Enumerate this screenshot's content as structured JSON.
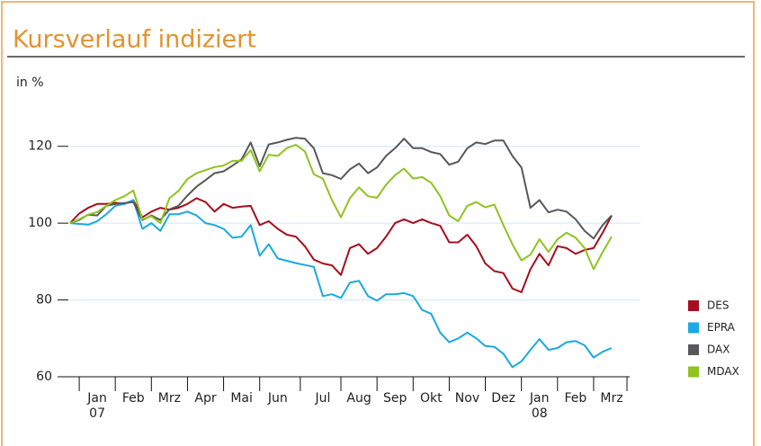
{
  "chart_data": {
    "type": "line",
    "title": "Kursverlauf indiziert",
    "y_label": "in %",
    "categories": [
      null,
      null,
      null,
      "Jan 07",
      null,
      null,
      null,
      "Feb",
      null,
      null,
      null,
      "Mrz",
      null,
      null,
      null,
      "Apr",
      null,
      null,
      null,
      "Mai",
      null,
      null,
      null,
      "Jun",
      null,
      null,
      null,
      null,
      "Jul",
      null,
      null,
      null,
      "Aug",
      null,
      null,
      null,
      "Sep",
      null,
      null,
      null,
      "Okt",
      null,
      null,
      null,
      "Nov",
      null,
      null,
      null,
      "Dez",
      null,
      null,
      null,
      "Jan 08",
      null,
      null,
      null,
      "Feb",
      null,
      null,
      null,
      "Mrz"
    ],
    "series": [
      {
        "name": "DES",
        "color": "#a50e1e",
        "values": [
          100,
          102.5,
          104,
          105,
          105,
          105.3,
          105,
          106,
          101.5,
          103,
          104,
          103.5,
          104,
          105,
          106.5,
          105.5,
          103,
          105,
          104,
          104.3,
          104.5,
          99.5,
          100.5,
          98.5,
          97,
          96.5,
          94,
          90.5,
          89.5,
          89,
          86.5,
          93.5,
          94.5,
          92,
          93.5,
          96.5,
          100,
          101,
          100,
          101,
          100,
          99.3,
          95,
          95,
          97,
          94,
          89.5,
          87.5,
          87,
          83,
          82,
          88,
          92,
          89,
          94,
          93.5,
          92,
          93,
          93.5,
          97.5,
          102
        ]
      },
      {
        "name": "EPRA",
        "color": "#1aa9e0",
        "values": [
          100,
          99.8,
          99.6,
          100.5,
          102.3,
          104.5,
          105,
          106,
          98.5,
          100,
          98,
          102.3,
          102.3,
          103,
          102,
          100,
          99.5,
          98.5,
          96.2,
          96.5,
          99.5,
          91.5,
          94.5,
          90.8,
          90.2,
          89.6,
          89.1,
          88.6,
          81,
          81.5,
          80.5,
          84.5,
          85,
          81,
          79.8,
          81.5,
          81.5,
          81.8,
          81,
          77.4,
          76.4,
          71.5,
          69,
          70,
          71.5,
          70,
          68,
          67.8,
          66,
          62.5,
          64,
          67,
          69.8,
          67,
          67.5,
          69,
          69.3,
          68.2,
          65,
          66.5,
          67.5
        ]
      },
      {
        "name": "DAX",
        "color": "#58585a",
        "values": [
          100,
          100.8,
          102.2,
          102,
          104.5,
          105,
          105.2,
          105.5,
          100.8,
          102,
          100.8,
          103.6,
          104.5,
          107.2,
          109.5,
          111.2,
          113,
          113.5,
          115,
          116.6,
          121,
          114.8,
          120.5,
          121,
          121.7,
          122.2,
          122,
          119.5,
          113,
          112.5,
          111.5,
          114,
          115.5,
          113,
          114.5,
          117.5,
          119.5,
          122,
          119.5,
          119.5,
          118.5,
          118,
          115.2,
          116,
          119.5,
          121,
          120.6,
          121.5,
          121.5,
          117.5,
          114.5,
          104,
          106,
          102.8,
          103.5,
          103,
          101,
          98,
          96,
          99.5,
          102
        ]
      },
      {
        "name": "MDAX",
        "color": "#8fc31f",
        "values": [
          100,
          101,
          102.2,
          102.9,
          104.5,
          106,
          107,
          108.5,
          101,
          101.8,
          100,
          106.5,
          108.4,
          111.5,
          113,
          113.8,
          114.6,
          115,
          116.2,
          116.2,
          119,
          113.5,
          117.8,
          117.5,
          119.5,
          120.4,
          118.7,
          112.7,
          111.6,
          106,
          101.5,
          106.5,
          109.3,
          107,
          106.6,
          110,
          112.5,
          114.2,
          111.6,
          112,
          110.5,
          107,
          102,
          100.5,
          104.5,
          105.5,
          104.1,
          104.8,
          99.5,
          94.5,
          90.3,
          91.8,
          95.8,
          92.5,
          95.8,
          97.5,
          96.2,
          93.5,
          88,
          92.5,
          96.5
        ]
      }
    ],
    "ylim": [
      60,
      130
    ],
    "yticks": [
      60,
      80,
      100,
      120
    ],
    "grid": true,
    "legend": "right"
  }
}
